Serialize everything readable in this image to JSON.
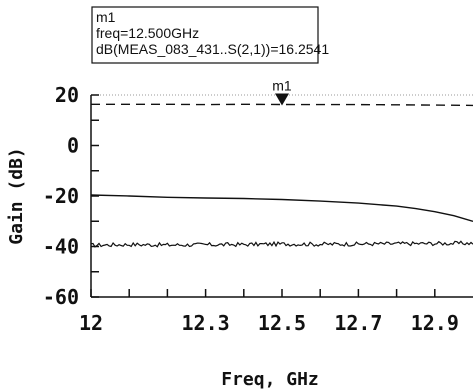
{
  "chart_data": {
    "type": "line",
    "xlabel": "Freq, GHz",
    "ylabel": "Gain (dB)",
    "xlim": [
      12.0,
      13.0
    ],
    "ylim": [
      -60,
      20
    ],
    "x_ticks": [
      12.0,
      12.1,
      12.2,
      12.3,
      12.4,
      12.5,
      12.6,
      12.7,
      12.8,
      12.9
    ],
    "x_tick_labels": [
      {
        "value": 12.0,
        "label": "12"
      },
      {
        "value": 12.3,
        "label": "12.3"
      },
      {
        "value": 12.5,
        "label": "12.5"
      },
      {
        "value": 12.7,
        "label": "12.7"
      },
      {
        "value": 12.9,
        "label": "12.9"
      }
    ],
    "y_ticks": [
      20,
      10,
      0,
      -10,
      -20,
      -30,
      -40,
      -50,
      -60
    ],
    "y_tick_labels": [
      {
        "value": 20,
        "label": "20"
      },
      {
        "value": 0,
        "label": "0"
      },
      {
        "value": -20,
        "label": "-20"
      },
      {
        "value": -40,
        "label": "-40"
      },
      {
        "value": -60,
        "label": "-60"
      }
    ],
    "grid": false,
    "series": [
      {
        "style": "dashed",
        "x": [
          12.0,
          12.1,
          12.2,
          12.3,
          12.4,
          12.5,
          12.6,
          12.7,
          12.8,
          12.9,
          13.0
        ],
        "y": [
          16.3,
          16.3,
          16.3,
          16.2,
          16.3,
          16.25,
          16.2,
          16.2,
          16.1,
          16.0,
          15.9
        ]
      },
      {
        "style": "solid",
        "x": [
          12.0,
          12.1,
          12.2,
          12.3,
          12.4,
          12.5,
          12.6,
          12.7,
          12.8,
          12.85,
          12.9,
          12.95,
          13.0
        ],
        "y": [
          -19.6,
          -20.0,
          -20.5,
          -20.8,
          -21.0,
          -21.4,
          -22.0,
          -22.8,
          -24.0,
          -25.0,
          -26.2,
          -27.8,
          -30.0
        ]
      },
      {
        "style": "solid-noisy",
        "x": [
          12.0,
          12.1,
          12.2,
          12.3,
          12.4,
          12.5,
          12.6,
          12.7,
          12.8,
          12.9,
          13.0
        ],
        "y": [
          -39.5,
          -39.2,
          -39.4,
          -39.3,
          -39.2,
          -39.0,
          -39.1,
          -39.0,
          -38.9,
          -38.8,
          -38.7
        ]
      }
    ],
    "marker": {
      "name": "m1",
      "x": 12.5,
      "y": 16.2541,
      "box_lines": [
        "m1",
        "freq=12.500GHz",
        "dB(MEAS_083_431..S(2,1))=16.2541"
      ]
    }
  }
}
